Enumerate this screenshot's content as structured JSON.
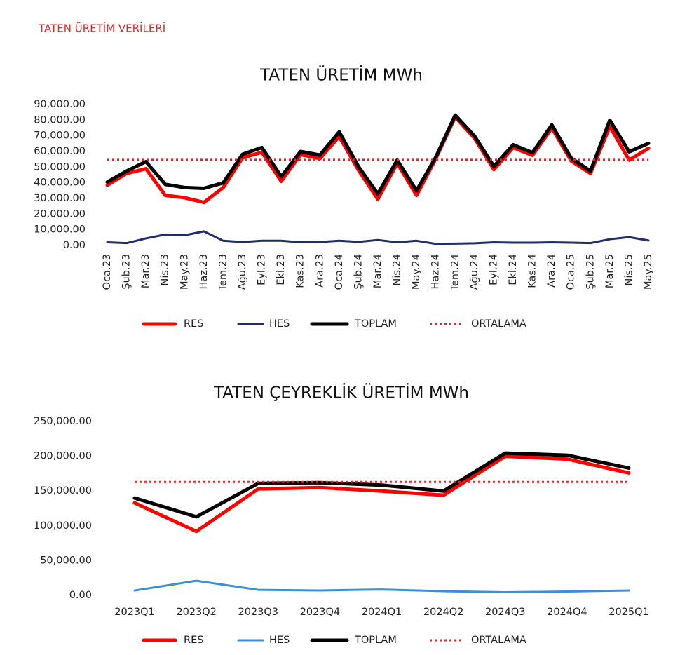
{
  "header": {
    "title": "TATEN ÜRETİM VERİLERİ"
  },
  "chart_data": [
    {
      "type": "line",
      "title": "TATEN ÜRETİM MWh",
      "categories": [
        "Oca.23",
        "Şub.23",
        "Mar.23",
        "Nis.23",
        "May.23",
        "Haz.23",
        "Tem.23",
        "Ağu.23",
        "Eyl.23",
        "Eki.23",
        "Kas.23",
        "Ara.23",
        "Oca.24",
        "Şub.24",
        "Mar.24",
        "Nis.24",
        "May.24",
        "Haz.24",
        "Tem.24",
        "Ağu.24",
        "Eyl.24",
        "Eki.24",
        "Kas.24",
        "Ara.24",
        "Oca.25",
        "Şub.25",
        "Mar.25",
        "Nis.25",
        "May.25"
      ],
      "series": [
        {
          "name": "RES",
          "color": "#ff0000",
          "values": [
            38500,
            46000,
            49000,
            32000,
            30500,
            27500,
            37000,
            56000,
            59500,
            41000,
            58000,
            55500,
            69500,
            48000,
            29500,
            52500,
            32000,
            55500,
            82000,
            68500,
            48500,
            62500,
            57500,
            75000,
            54000,
            46000,
            76000,
            54500,
            62000
          ]
        },
        {
          "name": "HES",
          "color": "#1f2d6b",
          "values": [
            2000,
            1500,
            4500,
            7000,
            6500,
            9000,
            3000,
            2200,
            3000,
            3000,
            2000,
            2200,
            3000,
            2300,
            3500,
            2000,
            3000,
            1000,
            1200,
            1400,
            2000,
            1800,
            1800,
            2000,
            1800,
            1500,
            4000,
            5300,
            3200
          ]
        },
        {
          "name": "TOPLAM",
          "color": "#000000",
          "values": [
            40500,
            47500,
            53500,
            39000,
            37000,
            36500,
            40000,
            58200,
            62500,
            44000,
            60000,
            57700,
            72500,
            50300,
            33000,
            54500,
            35000,
            56500,
            83200,
            69900,
            50500,
            64300,
            59300,
            77000,
            55800,
            47500,
            80000,
            59800,
            65200
          ]
        },
        {
          "name": "ORTALAMA",
          "color": "#e3262b",
          "style": "dotted",
          "values": [
            54700,
            54700,
            54700,
            54700,
            54700,
            54700,
            54700,
            54700,
            54700,
            54700,
            54700,
            54700,
            54700,
            54700,
            54700,
            54700,
            54700,
            54700,
            54700,
            54700,
            54700,
            54700,
            54700,
            54700,
            54700,
            54700,
            54700,
            54700,
            54700
          ]
        }
      ],
      "ylim": [
        0,
        90000
      ],
      "yticks": [
        {
          "value": 0,
          "label": "0.00"
        },
        {
          "value": 10000,
          "label": "10,000.00"
        },
        {
          "value": 20000,
          "label": "20,000.00"
        },
        {
          "value": 30000,
          "label": "30,000.00"
        },
        {
          "value": 40000,
          "label": "40,000.00"
        },
        {
          "value": 50000,
          "label": "50,000.00"
        },
        {
          "value": 60000,
          "label": "60,000.00"
        },
        {
          "value": 70000,
          "label": "70,000.00"
        },
        {
          "value": 80000,
          "label": "80,000.00"
        },
        {
          "value": 90000,
          "label": "90,000.00"
        }
      ],
      "x_label_rotation": -90,
      "legend": "bottom"
    },
    {
      "type": "line",
      "title": "TATEN ÇEYREKLİK ÜRETİM MWh",
      "categories": [
        "2023Q1",
        "2023Q2",
        "2023Q3",
        "2023Q4",
        "2024Q1",
        "2024Q2",
        "2024Q3",
        "2024Q4",
        "2025Q1"
      ],
      "series": [
        {
          "name": "RES",
          "color": "#ff0000",
          "values": [
            133000,
            92000,
            153000,
            155000,
            150000,
            144000,
            200000,
            196000,
            176000
          ]
        },
        {
          "name": "HES",
          "color": "#3a8fd9",
          "values": [
            7000,
            21000,
            8000,
            7000,
            8500,
            6000,
            4500,
            5500,
            7000
          ]
        },
        {
          "name": "TOPLAM",
          "color": "#000000",
          "values": [
            140000,
            113000,
            161000,
            162000,
            158500,
            150000,
            204500,
            201500,
            183000
          ]
        },
        {
          "name": "ORTALAMA",
          "color": "#e3262b",
          "style": "dotted",
          "values": [
            163000,
            163000,
            163000,
            163000,
            163000,
            163000,
            163000,
            163000,
            163000
          ]
        }
      ],
      "ylim": [
        0,
        250000
      ],
      "yticks": [
        {
          "value": 0,
          "label": "0.00"
        },
        {
          "value": 50000,
          "label": "50,000.00"
        },
        {
          "value": 100000,
          "label": "100,000.00"
        },
        {
          "value": 150000,
          "label": "150,000.00"
        },
        {
          "value": 200000,
          "label": "200,000.00"
        },
        {
          "value": 250000,
          "label": "250,000.00"
        }
      ],
      "x_label_rotation": 0,
      "legend": "bottom"
    }
  ]
}
